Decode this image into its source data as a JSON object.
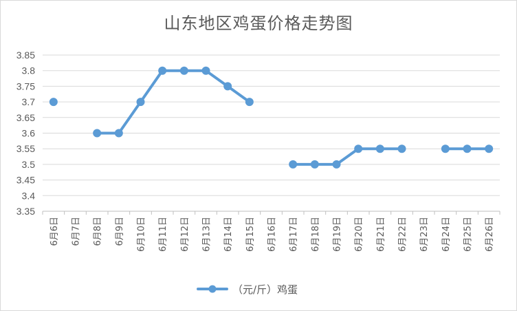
{
  "chart_data": {
    "type": "line",
    "title": "山东地区鸡蛋价格走势图",
    "xlabel": "",
    "ylabel": "",
    "ylim": [
      3.35,
      3.85
    ],
    "yticks": [
      "3.85",
      "3.8",
      "3.75",
      "3.7",
      "3.65",
      "3.6",
      "3.55",
      "3.5",
      "3.45",
      "3.4",
      "3.35"
    ],
    "categories": [
      "6月6日",
      "6月7日",
      "6月8日",
      "6月9日",
      "6月10日",
      "6月11日",
      "6月12日",
      "6月13日",
      "6月14日",
      "6月15日",
      "6月16日",
      "6月17日",
      "6月18日",
      "6月19日",
      "6月20日",
      "6月21日",
      "6月22日",
      "6月23日",
      "6月24日",
      "6月25日",
      "6月26日"
    ],
    "grid": true,
    "legend_position": "bottom",
    "series": [
      {
        "name": "（元/斤）鸡蛋",
        "color": "#5b9bd5",
        "values": [
          3.7,
          null,
          3.6,
          3.6,
          3.7,
          3.8,
          3.8,
          3.8,
          3.75,
          3.7,
          null,
          3.5,
          3.5,
          3.5,
          3.55,
          3.55,
          3.55,
          null,
          3.55,
          3.55,
          3.55
        ]
      }
    ]
  }
}
